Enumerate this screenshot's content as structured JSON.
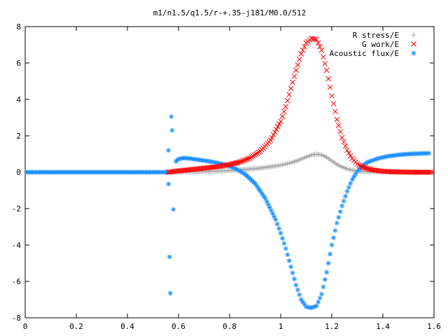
{
  "chart_data": {
    "type": "scatter",
    "title": "m1/n1.5/q1.5/r-+.35-j181/M0.0/512",
    "xlabel": "",
    "ylabel": "",
    "xlim": [
      0,
      1.6
    ],
    "ylim": [
      -8,
      8
    ],
    "x_ticks": [
      "0",
      "0.2",
      "0.4",
      "0.6",
      "0.8",
      "1",
      "1.2",
      "1.4",
      "1.6"
    ],
    "y_ticks": [
      "-8",
      "-6",
      "-4",
      "-2",
      "0",
      "2",
      "4",
      "6",
      "8"
    ],
    "grid": false,
    "legend_position": "top-right",
    "series": [
      {
        "name": "R stress/E",
        "marker": "plus",
        "color": "#a0a0a0",
        "x": [
          0.58,
          0.62,
          0.66,
          0.7,
          0.74,
          0.78,
          0.82,
          0.86,
          0.9,
          0.94,
          0.98,
          1.0,
          1.02,
          1.04,
          1.06,
          1.08,
          1.1,
          1.12,
          1.14,
          1.16,
          1.18,
          1.2,
          1.22,
          1.24,
          1.26,
          1.28,
          1.3,
          1.34,
          1.38,
          1.42,
          1.46,
          1.5,
          1.54,
          1.58
        ],
        "y": [
          0.0,
          0.01,
          0.02,
          0.04,
          0.06,
          0.08,
          0.11,
          0.15,
          0.2,
          0.26,
          0.34,
          0.39,
          0.45,
          0.52,
          0.61,
          0.72,
          0.84,
          0.94,
          1.0,
          0.95,
          0.82,
          0.62,
          0.43,
          0.29,
          0.18,
          0.11,
          0.06,
          0.03,
          0.02,
          0.01,
          0.0,
          0.0,
          0.0,
          0.0
        ]
      },
      {
        "name": "G work/E",
        "marker": "cross",
        "color": "#ff0000",
        "x": [
          0.56,
          0.6,
          0.64,
          0.68,
          0.72,
          0.76,
          0.8,
          0.84,
          0.88,
          0.92,
          0.96,
          1.0,
          1.02,
          1.04,
          1.06,
          1.08,
          1.1,
          1.12,
          1.14,
          1.16,
          1.18,
          1.2,
          1.22,
          1.24,
          1.26,
          1.28,
          1.3,
          1.32,
          1.36,
          1.4,
          1.44,
          1.48,
          1.52,
          1.56,
          1.59
        ],
        "y": [
          0.0,
          0.07,
          0.13,
          0.19,
          0.25,
          0.32,
          0.42,
          0.56,
          0.78,
          1.15,
          1.75,
          2.8,
          3.6,
          4.6,
          5.6,
          6.5,
          7.1,
          7.35,
          7.3,
          6.7,
          5.6,
          4.2,
          2.9,
          1.9,
          1.2,
          0.75,
          0.45,
          0.28,
          0.12,
          0.05,
          0.02,
          0.01,
          0.0,
          0.0,
          0.0
        ]
      },
      {
        "name": "Acoustic flux/E",
        "marker": "star",
        "color": "#1e90ff",
        "x": [
          0,
          0.04,
          0.08,
          0.12,
          0.16,
          0.2,
          0.24,
          0.28,
          0.32,
          0.36,
          0.4,
          0.44,
          0.48,
          0.52,
          0.555,
          0.56,
          0.561,
          0.565,
          0.568,
          0.572,
          0.575,
          0.58,
          0.59,
          0.6,
          0.62,
          0.64,
          0.66,
          0.7,
          0.74,
          0.78,
          0.82,
          0.86,
          0.9,
          0.94,
          0.98,
          1.0,
          1.02,
          1.04,
          1.06,
          1.08,
          1.1,
          1.12,
          1.14,
          1.16,
          1.18,
          1.2,
          1.22,
          1.24,
          1.26,
          1.28,
          1.3,
          1.32,
          1.34,
          1.38,
          1.42,
          1.46,
          1.5,
          1.54,
          1.58
        ],
        "y": [
          0,
          0,
          0,
          0,
          0,
          0,
          0,
          0,
          0,
          0,
          0,
          0,
          0,
          0,
          0,
          1.2,
          -0.65,
          -4.65,
          -6.65,
          3.05,
          2.3,
          -2.05,
          0.6,
          0.72,
          0.78,
          0.76,
          0.72,
          0.64,
          0.55,
          0.42,
          0.22,
          -0.1,
          -0.62,
          -1.45,
          -2.6,
          -3.35,
          -4.2,
          -5.2,
          -6.2,
          -7.0,
          -7.4,
          -7.45,
          -7.35,
          -6.7,
          -5.5,
          -4.0,
          -2.8,
          -1.85,
          -1.05,
          -0.4,
          0.05,
          0.35,
          0.55,
          0.75,
          0.88,
          0.95,
          1.0,
          1.02,
          1.04
        ]
      }
    ]
  }
}
